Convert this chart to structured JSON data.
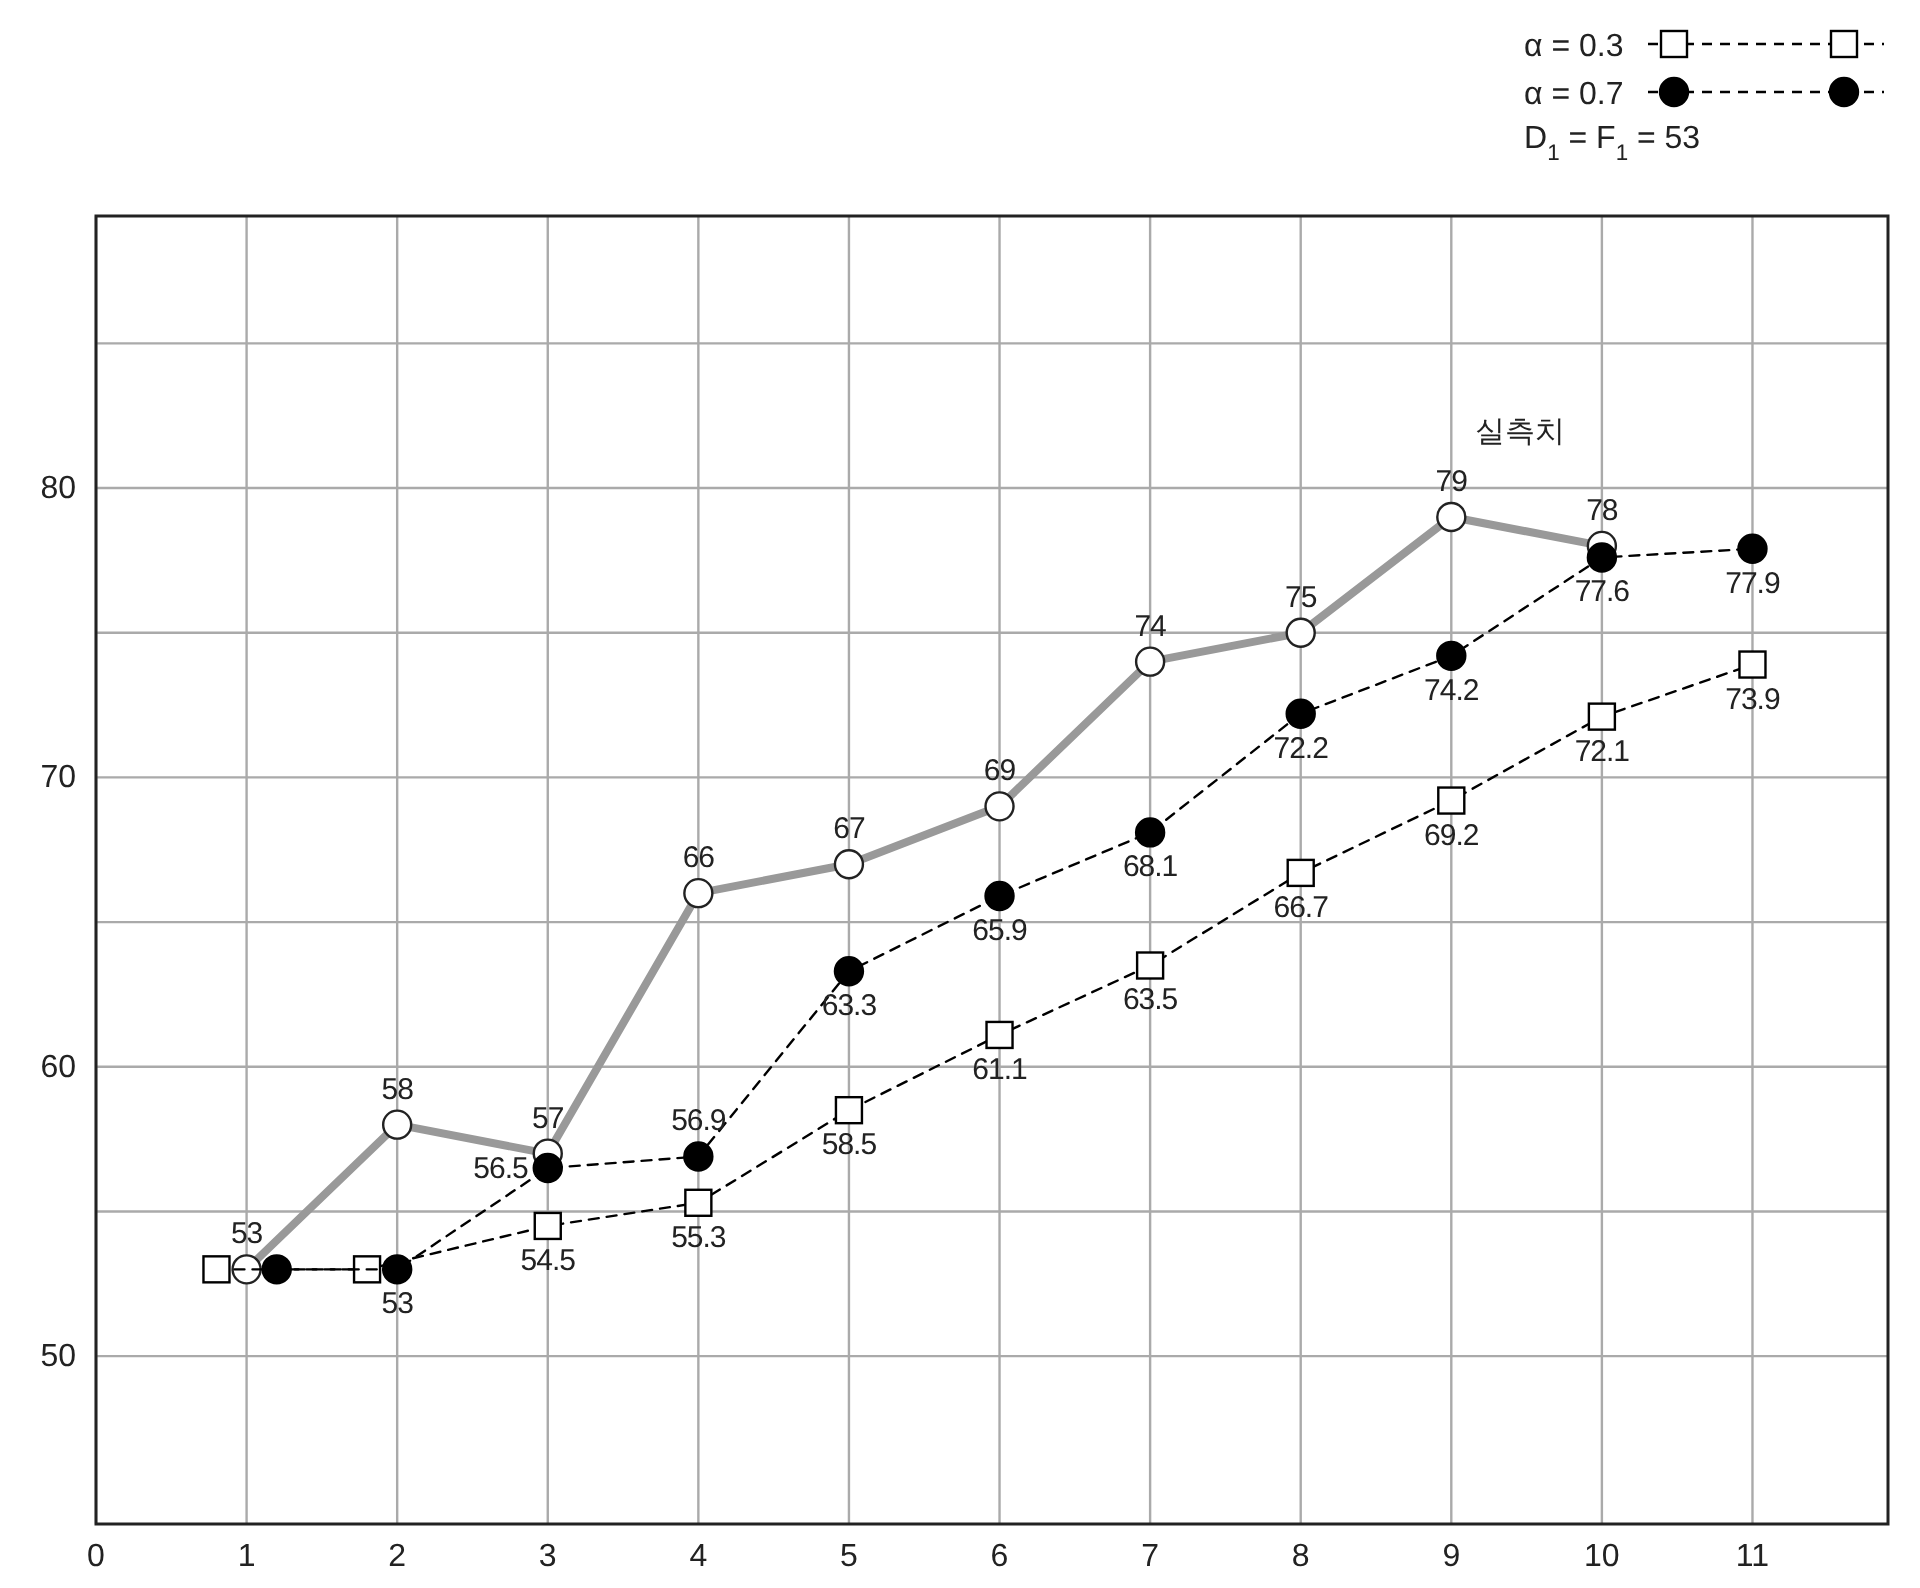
{
  "chart_data": {
    "type": "line",
    "xlim": [
      0,
      11.9
    ],
    "xticks": [
      0,
      1,
      2,
      3,
      4,
      5,
      6,
      7,
      8,
      9,
      10,
      11
    ],
    "ylim": [
      44.2,
      89.4
    ],
    "yticks": [
      50,
      {
        "value": 55,
        "label": null
      },
      60,
      {
        "value": 65,
        "label": null
      },
      70,
      {
        "value": 75,
        "label": null
      },
      80,
      {
        "value": 85,
        "label": null
      }
    ],
    "grid": true,
    "legend": "top right",
    "annotations": [
      "D$_{1}$ = F$_{1}$ = 53"
    ],
    "series": [
      {
        "name": "실측치",
        "color": "#999999",
        "marker": "circle",
        "line_style": "solid",
        "x": [
          1,
          2,
          3,
          4,
          5,
          6,
          7,
          8,
          9,
          10
        ],
        "values": [
          53,
          58,
          57,
          66,
          67,
          69,
          74,
          75,
          79,
          78
        ],
        "value_labels": [
          "53",
          "58",
          "57",
          "66",
          "67",
          "69",
          "74",
          "75",
          "79",
          "78"
        ]
      },
      {
        "name": "α = 0.3",
        "color": "#000000",
        "marker": "square",
        "line_style": "dashed",
        "x": [
          0.8,
          1.8,
          3,
          4,
          5,
          6,
          7,
          8,
          9,
          10,
          11
        ],
        "values": [
          53,
          53,
          54.5,
          55.3,
          58.5,
          61.1,
          63.5,
          66.7,
          69.2,
          72.1,
          73.9
        ],
        "value_labels": [
          null,
          null,
          "54.5",
          "55.3",
          "58.5",
          "61.1",
          "63.5",
          "66.7",
          "69.2",
          "72.1",
          "73.9"
        ]
      },
      {
        "name": "α = 0.7",
        "color": "#000000",
        "marker": "circle",
        "line_style": "dashed",
        "x": [
          1.2,
          2,
          3,
          4,
          5,
          6,
          7,
          8,
          9,
          10,
          11
        ],
        "values": [
          53,
          53,
          56.5,
          56.9,
          63.3,
          65.9,
          68.1,
          72.2,
          74.2,
          77.6,
          77.9
        ],
        "value_labels": [
          null,
          "53",
          "56.5",
          "56.9",
          "63.3",
          "65.9",
          "68.1",
          "72.2",
          "74.2",
          "77.6",
          "77.9"
        ]
      }
    ]
  }
}
